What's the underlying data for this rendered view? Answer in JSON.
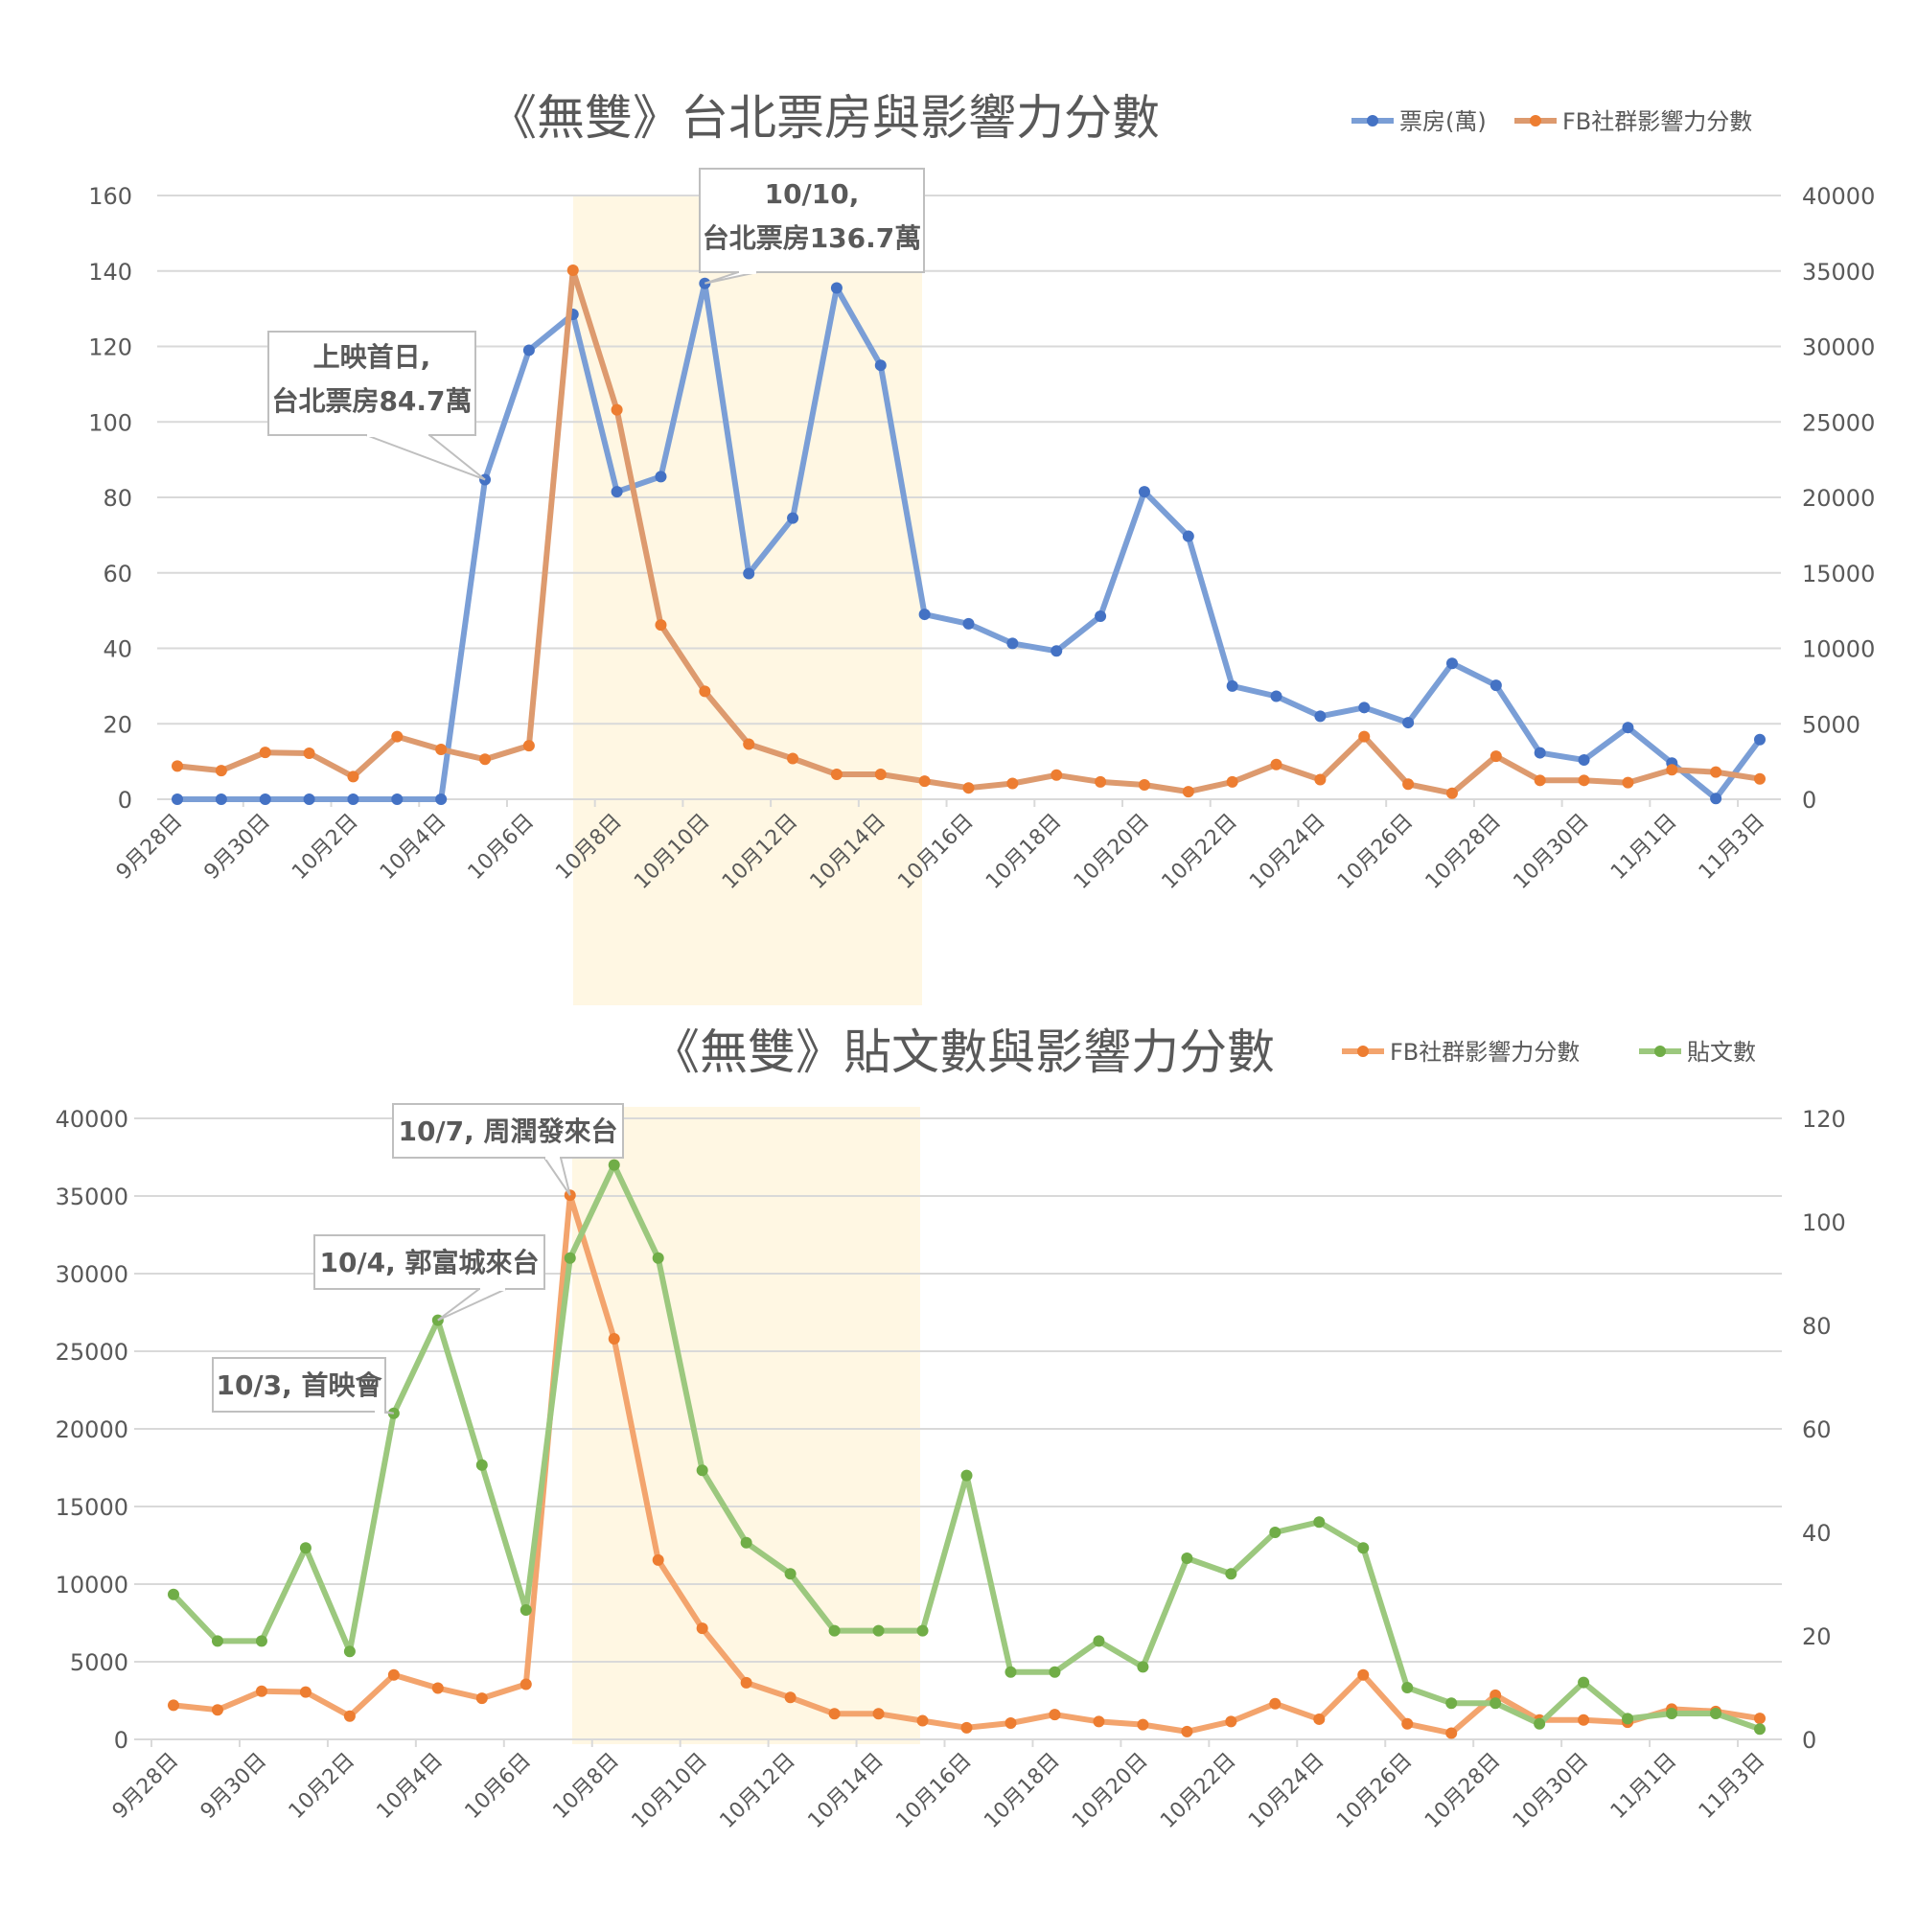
{
  "colors": {
    "box_office": "#4472C4",
    "box_office_line": "#7A9ED6",
    "fb_score": "#ED7D31",
    "fb_score_line_top": "#DD9A6E",
    "fb_score_line_bottom": "#F3A46D",
    "posts": "#70AD47",
    "posts_line": "#9CC87E",
    "highlight": "#FFF7E3",
    "grid": "#D9D9D9"
  },
  "chart_data": [
    {
      "type": "line",
      "title": "《無雙》台北票房與影響力分數",
      "legend_position": "top-right",
      "grid": true,
      "x": [
        "9月28日",
        "9月29日",
        "9月30日",
        "10月1日",
        "10月2日",
        "10月3日",
        "10月4日",
        "10月5日",
        "10月6日",
        "10月7日",
        "10月8日",
        "10月9日",
        "10月10日",
        "10月11日",
        "10月12日",
        "10月13日",
        "10月14日",
        "10月15日",
        "10月16日",
        "10月17日",
        "10月18日",
        "10月19日",
        "10月20日",
        "10月21日",
        "10月22日",
        "10月23日",
        "10月24日",
        "10月25日",
        "10月26日",
        "10月27日",
        "10月28日",
        "10月29日",
        "10月30日",
        "10月31日",
        "11月1日",
        "11月2日",
        "11月3日"
      ],
      "x_tick_labels": [
        "9月28日",
        "9月30日",
        "10月2日",
        "10月4日",
        "10月6日",
        "10月8日",
        "10月10日",
        "10月12日",
        "10月14日",
        "10月16日",
        "10月18日",
        "10月20日",
        "10月22日",
        "10月24日",
        "10月26日",
        "10月28日",
        "10月30日",
        "11月1日",
        "11月3日"
      ],
      "y_left": {
        "range": [
          0,
          160
        ],
        "ticks": [
          "0",
          "20",
          "40",
          "60",
          "80",
          "100",
          "120",
          "140",
          "160"
        ]
      },
      "y_right": {
        "range": [
          0,
          40000
        ],
        "ticks": [
          "0",
          "5000",
          "10000",
          "15000",
          "20000",
          "25000",
          "30000",
          "35000",
          "40000"
        ]
      },
      "highlight_range": [
        "10月7日",
        "10月15日"
      ],
      "series": [
        {
          "name": "票房(萬)",
          "axis": "left",
          "color_key": "box_office",
          "values": [
            0,
            0,
            0,
            0,
            0,
            0,
            0,
            84.7,
            119,
            128.5,
            81.5,
            85.5,
            136.7,
            59.8,
            74.5,
            135.5,
            115,
            49,
            46.5,
            41.3,
            39.3,
            48.5,
            81.5,
            69.7,
            30,
            27.3,
            22,
            24.3,
            20.3,
            36,
            30.2,
            12.3,
            10.4,
            19,
            9.6,
            0.2,
            15.8
          ]
        },
        {
          "name": "FB社群影響力分數",
          "axis": "right",
          "color_key": "fb_score",
          "values": [
            2200,
            1900,
            3100,
            3050,
            1500,
            4150,
            3300,
            2650,
            3550,
            35050,
            25800,
            11550,
            7150,
            3650,
            2700,
            1650,
            1650,
            1200,
            750,
            1050,
            1600,
            1150,
            950,
            500,
            1150,
            2300,
            1300,
            4150,
            1000,
            400,
            2850,
            1250,
            1250,
            1100,
            1950,
            1800,
            1350
          ]
        }
      ],
      "annotations": [
        {
          "x": "10月5日",
          "series": "票房(萬)",
          "lines": [
            "上映首日,",
            "台北票房84.7萬"
          ]
        },
        {
          "x": "10月10日",
          "series": "票房(萬)",
          "lines": [
            "10/10,",
            "台北票房136.7萬"
          ]
        }
      ]
    },
    {
      "type": "line",
      "title": "《無雙》貼文數與影響力分數",
      "legend_position": "top-right",
      "grid": true,
      "x": [
        "9月28日",
        "9月29日",
        "9月30日",
        "10月1日",
        "10月2日",
        "10月3日",
        "10月4日",
        "10月5日",
        "10月6日",
        "10月7日",
        "10月8日",
        "10月9日",
        "10月10日",
        "10月11日",
        "10月12日",
        "10月13日",
        "10月14日",
        "10月15日",
        "10月16日",
        "10月17日",
        "10月18日",
        "10月19日",
        "10月20日",
        "10月21日",
        "10月22日",
        "10月23日",
        "10月24日",
        "10月25日",
        "10月26日",
        "10月27日",
        "10月28日",
        "10月29日",
        "10月30日",
        "10月31日",
        "11月1日",
        "11月2日",
        "11月3日"
      ],
      "x_tick_labels": [
        "9月28日",
        "9月30日",
        "10月2日",
        "10月4日",
        "10月6日",
        "10月8日",
        "10月10日",
        "10月12日",
        "10月14日",
        "10月16日",
        "10月18日",
        "10月20日",
        "10月22日",
        "10月24日",
        "10月26日",
        "10月28日",
        "10月30日",
        "11月1日",
        "11月3日"
      ],
      "y_left": {
        "range": [
          0,
          40000
        ],
        "ticks": [
          "0",
          "5000",
          "10000",
          "15000",
          "20000",
          "25000",
          "30000",
          "35000",
          "40000"
        ]
      },
      "y_right": {
        "range": [
          0,
          120
        ],
        "ticks": [
          "0",
          "20",
          "40",
          "60",
          "80",
          "100",
          "120"
        ]
      },
      "highlight_range": [
        "10月7日",
        "10月15日"
      ],
      "series": [
        {
          "name": "FB社群影響力分數",
          "axis": "left",
          "color_key": "fb_score",
          "values": [
            2200,
            1900,
            3100,
            3050,
            1500,
            4150,
            3300,
            2650,
            3550,
            35050,
            25800,
            11550,
            7150,
            3650,
            2700,
            1650,
            1650,
            1200,
            750,
            1050,
            1600,
            1150,
            950,
            500,
            1150,
            2300,
            1300,
            4150,
            1000,
            400,
            2850,
            1250,
            1250,
            1100,
            1950,
            1800,
            1350
          ]
        },
        {
          "name": "貼文數",
          "axis": "right",
          "color_key": "posts",
          "values": [
            28,
            19,
            19,
            37,
            17,
            63,
            81,
            53,
            25,
            93,
            111,
            93,
            52,
            38,
            32,
            21,
            21,
            21,
            51,
            13,
            13,
            19,
            14,
            35,
            32,
            40,
            42,
            37,
            10,
            7,
            7,
            3,
            11,
            4,
            5,
            5,
            2
          ]
        }
      ],
      "annotations": [
        {
          "x": "10月3日",
          "series": "貼文數",
          "lines": [
            "10/3, 首映會"
          ]
        },
        {
          "x": "10月4日",
          "series": "貼文數",
          "lines": [
            "10/4, 郭富城來台"
          ]
        },
        {
          "x": "10月7日",
          "series": "FB社群影響力分數",
          "lines": [
            "10/7, 周潤發來台"
          ]
        }
      ]
    }
  ]
}
